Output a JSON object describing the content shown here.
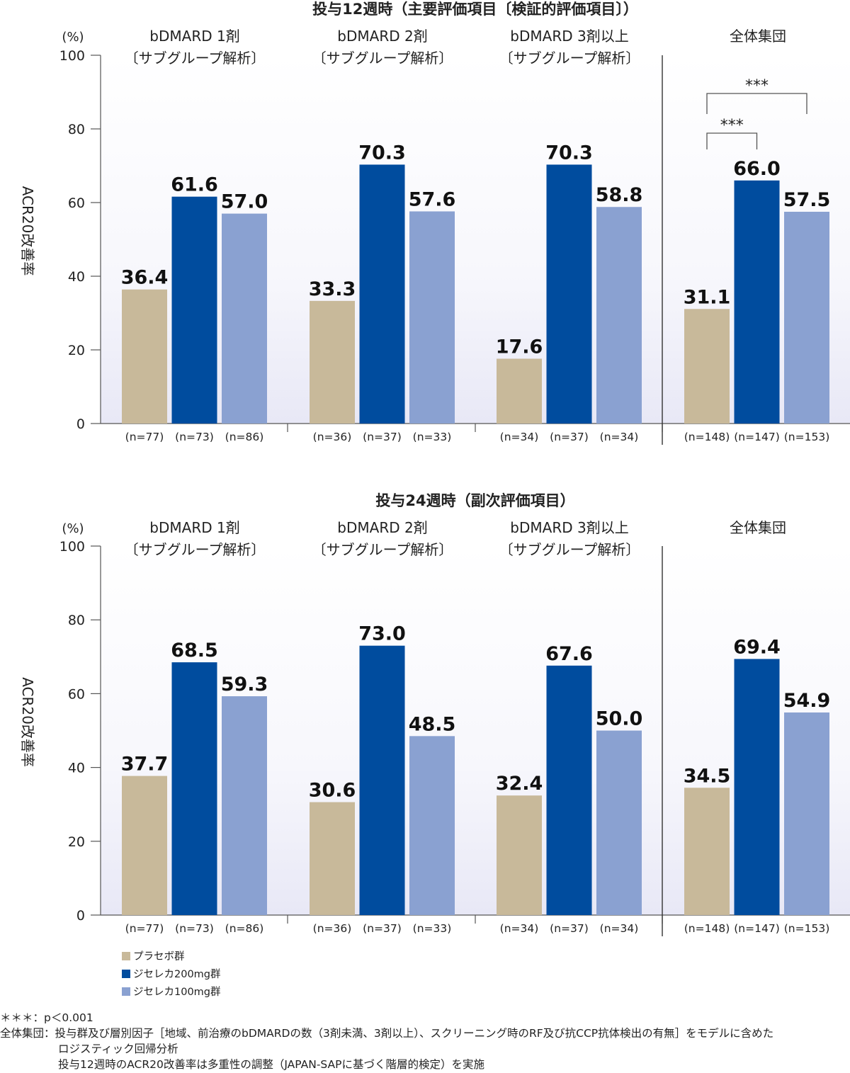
{
  "charts": [
    {
      "title": "投与12週時（主要評価項目〔検証的評価項目〕）",
      "y_unit": "(%)",
      "ylabel": "ACR20改善率",
      "significance": [
        "***",
        "***"
      ]
    },
    {
      "title": "投与24週時（副次評価項目）",
      "y_unit": "(%)",
      "ylabel": "ACR20改善率"
    }
  ],
  "groups": [
    {
      "line1": "bDMARD 1剤",
      "line2": "〔サブグループ解析〕"
    },
    {
      "line1": "bDMARD 2剤",
      "line2": "〔サブグループ解析〕"
    },
    {
      "line1": "bDMARD 3剤以上",
      "line2": "〔サブグループ解析〕"
    },
    {
      "line1": "全体集団",
      "line2": ""
    }
  ],
  "legend": [
    {
      "label": "プラセボ群",
      "color": "#c8b99a"
    },
    {
      "label": "ジセレカ200mg群",
      "color": "#004c9e"
    },
    {
      "label": "ジセレカ100mg群",
      "color": "#8aa1d1"
    }
  ],
  "chart_data": [
    {
      "type": "bar",
      "title": "投与12週時（主要評価項目〔検証的評価項目〕）",
      "ylabel": "ACR20改善率",
      "ylim": [
        0,
        100
      ],
      "yticks": [
        "0",
        "20",
        "40",
        "60",
        "80",
        "100"
      ],
      "categories": [
        "bDMARD 1剤〔サブグループ解析〕",
        "bDMARD 2剤〔サブグループ解析〕",
        "bDMARD 3剤以上〔サブグループ解析〕",
        "全体集団"
      ],
      "series": [
        {
          "name": "プラセボ群",
          "values": [
            36.4,
            33.3,
            17.6,
            31.1
          ],
          "labels": [
            "36.4",
            "33.3",
            "17.6",
            "31.1"
          ],
          "n": [
            "(n=77)",
            "(n=36)",
            "(n=34)",
            "(n=148)"
          ]
        },
        {
          "name": "ジセレカ200mg群",
          "values": [
            61.6,
            70.3,
            70.3,
            66.0
          ],
          "labels": [
            "61.6",
            "70.3",
            "70.3",
            "66.0"
          ],
          "n": [
            "(n=73)",
            "(n=37)",
            "(n=37)",
            "(n=147)"
          ]
        },
        {
          "name": "ジセレカ100mg群",
          "values": [
            57.0,
            57.6,
            58.8,
            57.5
          ],
          "labels": [
            "57.0",
            "57.6",
            "58.8",
            "57.5"
          ],
          "n": [
            "(n=86)",
            "(n=33)",
            "(n=34)",
            "(n=153)"
          ]
        }
      ]
    },
    {
      "type": "bar",
      "title": "投与24週時（副次評価項目）",
      "ylabel": "ACR20改善率",
      "ylim": [
        0,
        100
      ],
      "yticks": [
        "0",
        "20",
        "40",
        "60",
        "80",
        "100"
      ],
      "categories": [
        "bDMARD 1剤〔サブグループ解析〕",
        "bDMARD 2剤〔サブグループ解析〕",
        "bDMARD 3剤以上〔サブグループ解析〕",
        "全体集団"
      ],
      "series": [
        {
          "name": "プラセボ群",
          "values": [
            37.7,
            30.6,
            32.4,
            34.5
          ],
          "labels": [
            "37.7",
            "30.6",
            "32.4",
            "34.5"
          ],
          "n": [
            "(n=77)",
            "(n=36)",
            "(n=34)",
            "(n=148)"
          ]
        },
        {
          "name": "ジセレカ200mg群",
          "values": [
            68.5,
            73.0,
            67.6,
            69.4
          ],
          "labels": [
            "68.5",
            "73.0",
            "67.6",
            "69.4"
          ],
          "n": [
            "(n=73)",
            "(n=37)",
            "(n=37)",
            "(n=147)"
          ]
        },
        {
          "name": "ジセレカ100mg群",
          "values": [
            59.3,
            48.5,
            50.0,
            54.9
          ],
          "labels": [
            "59.3",
            "48.5",
            "50.0",
            "54.9"
          ],
          "n": [
            "(n=86)",
            "(n=33)",
            "(n=34)",
            "(n=153)"
          ]
        }
      ]
    }
  ],
  "footnotes": {
    "significance": "＊＊＊：p＜0.001",
    "population_label": "全体集団：",
    "population_line1": "投与群及び層別因子［地域、前治療のbDMARDの数（3剤未満、3剤以上）、スクリーニング時のRF及び抗CCP抗体検出の有無］をモデルに含めた",
    "population_line2": "ロジスティック回帰分析",
    "population_line3": "投与12週時のACR20改善率は多重性の調整（JAPAN-SAPに基づく階層的検定）を実施"
  }
}
